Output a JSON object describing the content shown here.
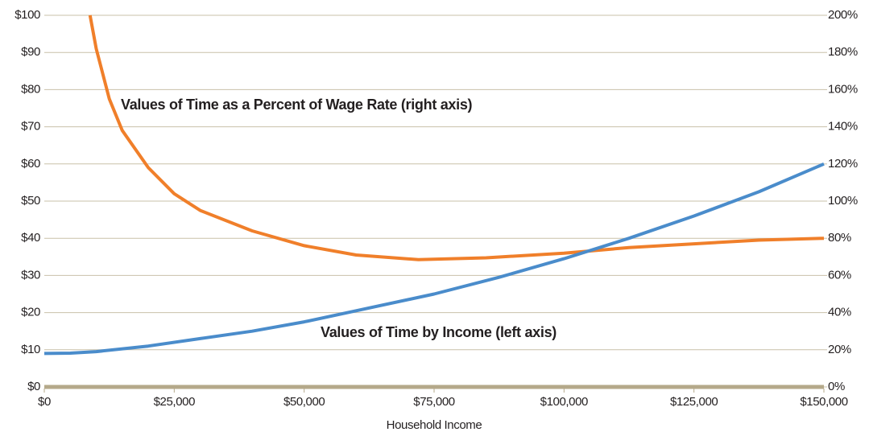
{
  "chart_data": {
    "type": "line",
    "xlabel": "Household Income",
    "xlim": [
      0,
      150000
    ],
    "xticks": [
      {
        "value": 0,
        "label": "$0"
      },
      {
        "value": 25000,
        "label": "$25,000"
      },
      {
        "value": 50000,
        "label": "$50,000"
      },
      {
        "value": 75000,
        "label": "$75,000"
      },
      {
        "value": 100000,
        "label": "$100,000"
      },
      {
        "value": 125000,
        "label": "$125,000"
      },
      {
        "value": 150000,
        "label": "$150,000"
      }
    ],
    "ylim": [
      0,
      100
    ],
    "yticks": [
      {
        "value": 0,
        "label": "$0"
      },
      {
        "value": 10,
        "label": "$10"
      },
      {
        "value": 20,
        "label": "$20"
      },
      {
        "value": 30,
        "label": "$30"
      },
      {
        "value": 40,
        "label": "$40"
      },
      {
        "value": 50,
        "label": "$50"
      },
      {
        "value": 60,
        "label": "$60"
      },
      {
        "value": 70,
        "label": "$70"
      },
      {
        "value": 80,
        "label": "$80"
      },
      {
        "value": 90,
        "label": "$90"
      },
      {
        "value": 100,
        "label": "$100"
      }
    ],
    "y2lim": [
      0,
      200
    ],
    "y2ticks": [
      {
        "value": 0,
        "label": "0%"
      },
      {
        "value": 20,
        "label": "20%"
      },
      {
        "value": 40,
        "label": "40%"
      },
      {
        "value": 60,
        "label": "60%"
      },
      {
        "value": 80,
        "label": "80%"
      },
      {
        "value": 100,
        "label": "100%"
      },
      {
        "value": 120,
        "label": "120%"
      },
      {
        "value": 140,
        "label": "140%"
      },
      {
        "value": 160,
        "label": "160%"
      },
      {
        "value": 180,
        "label": "180%"
      },
      {
        "value": 200,
        "label": "200%"
      }
    ],
    "grid": true,
    "series": [
      {
        "name": "Values of Time as a Percent of Wage Rate (right axis)",
        "color": "#f07f2a",
        "axis": "y2",
        "x": [
          8800,
          10000,
          12500,
          15000,
          20000,
          25000,
          30000,
          40000,
          50000,
          60000,
          72000,
          85000,
          100000,
          112500,
          125000,
          137500,
          150000
        ],
        "values": [
          200,
          182,
          155,
          138,
          118,
          104,
          95,
          84,
          76,
          71,
          68.5,
          69.5,
          72,
          75,
          77,
          79,
          80
        ]
      },
      {
        "name": "Values of Time by Income (left axis)",
        "color": "#4a8ccb",
        "x": [
          0,
          5000,
          10000,
          20000,
          30000,
          40000,
          50000,
          60000,
          75000,
          87500,
          100000,
          112500,
          125000,
          137500,
          150000
        ],
        "values": [
          9,
          9.1,
          9.5,
          11,
          13,
          15,
          17.5,
          20.5,
          25,
          29.5,
          34.5,
          40,
          46,
          52.5,
          60
        ]
      }
    ]
  }
}
